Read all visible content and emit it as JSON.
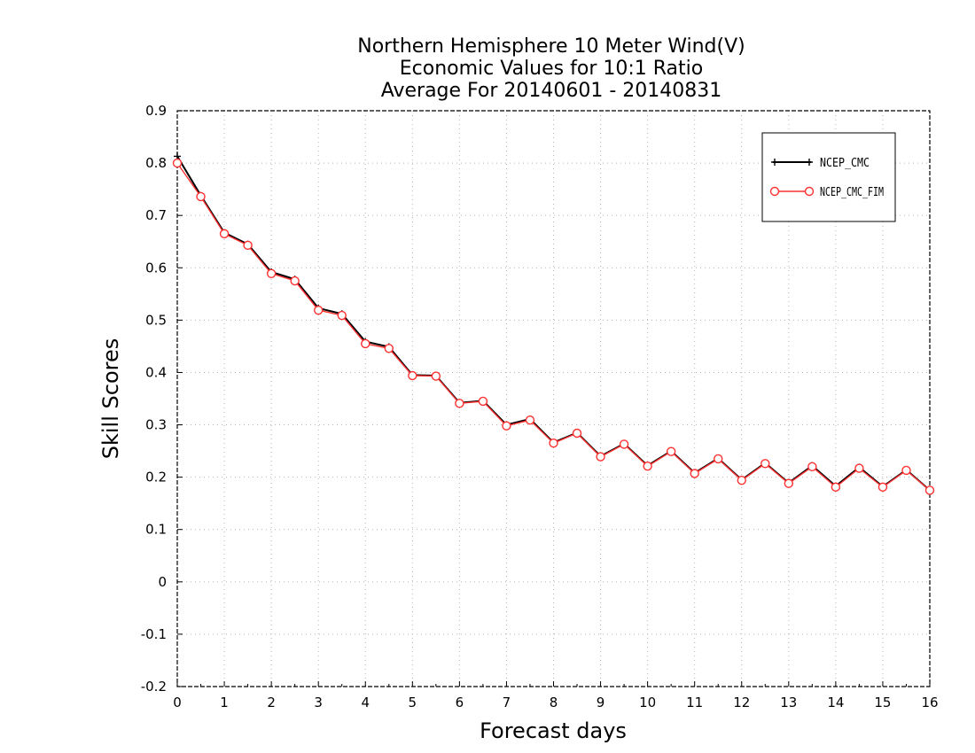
{
  "chart_data": {
    "type": "line",
    "title": [
      "Northern Hemisphere 10 Meter Wind(V)",
      "Economic Values for 10:1 Ratio",
      "Average For 20140601 - 20140831"
    ],
    "xlabel": "Forecast days",
    "ylabel": "Skill Scores",
    "xlim": [
      0,
      16
    ],
    "ylim": [
      -0.2,
      0.9
    ],
    "xticks": [
      "0",
      "1",
      "2",
      "3",
      "4",
      "5",
      "6",
      "7",
      "8",
      "9",
      "10",
      "11",
      "12",
      "13",
      "14",
      "15",
      "16"
    ],
    "yticks": [
      "0.9",
      "0.8",
      "0.7",
      "0.6",
      "0.5",
      "0.4",
      "0.3",
      "0.2",
      "0.1",
      "0",
      "-0.1",
      "-0.2"
    ],
    "grid": true,
    "legend_position": "top-right",
    "x": [
      0,
      0.5,
      1,
      1.5,
      2,
      2.5,
      3,
      3.5,
      4,
      4.5,
      5,
      5.5,
      6,
      6.5,
      7,
      7.5,
      8,
      8.5,
      9,
      9.5,
      10,
      10.5,
      11,
      11.5,
      12,
      12.5,
      13,
      13.5,
      14,
      14.5,
      15,
      15.5,
      16
    ],
    "series": [
      {
        "name": "NCEP_CMC",
        "color": "#000000",
        "marker": "plus",
        "values": [
          0.813,
          0.738,
          0.667,
          0.645,
          0.592,
          0.578,
          0.523,
          0.512,
          0.459,
          0.449,
          0.395,
          0.394,
          0.342,
          0.346,
          0.3,
          0.311,
          0.266,
          0.285,
          0.24,
          0.264,
          0.222,
          0.25,
          0.208,
          0.236,
          0.195,
          0.227,
          0.189,
          0.222,
          0.183,
          0.219,
          0.182,
          0.214,
          0.175
        ]
      },
      {
        "name": "NCEP_CMC_FIM",
        "color": "#ff3030",
        "marker": "circle",
        "values": [
          0.8,
          0.736,
          0.665,
          0.643,
          0.589,
          0.575,
          0.519,
          0.509,
          0.455,
          0.446,
          0.394,
          0.393,
          0.341,
          0.345,
          0.298,
          0.309,
          0.265,
          0.284,
          0.239,
          0.263,
          0.221,
          0.249,
          0.207,
          0.235,
          0.194,
          0.226,
          0.188,
          0.22,
          0.181,
          0.217,
          0.181,
          0.213,
          0.175
        ]
      }
    ]
  }
}
